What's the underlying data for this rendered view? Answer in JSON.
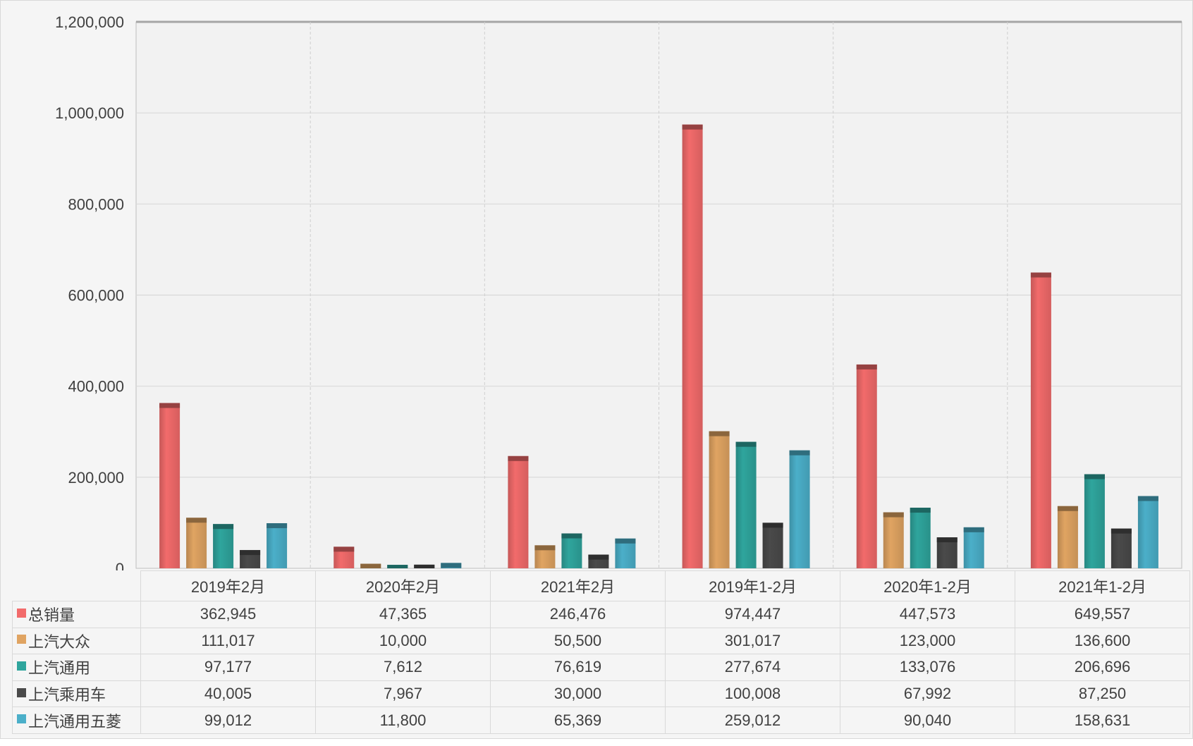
{
  "chart_data": {
    "type": "bar",
    "title": "",
    "xlabel": "",
    "ylabel": "",
    "ylim": [
      0,
      1200000
    ],
    "yticks": [
      0,
      200000,
      400000,
      600000,
      800000,
      1000000,
      1200000
    ],
    "ytick_labels": [
      "0",
      "200,000",
      "400,000",
      "600,000",
      "800,000",
      "1,000,000",
      "1,200,000"
    ],
    "grid": true,
    "legend_placement": "data-table-left",
    "categories": [
      "2019年2月",
      "2020年2月",
      "2021年2月",
      "2019年1-2月",
      "2020年1-2月",
      "2021年1-2月"
    ],
    "series": [
      {
        "name": "总销量",
        "color": "#f26b6b",
        "values": [
          362945,
          47365,
          246476,
          974447,
          447573,
          649557
        ],
        "labels": [
          "362,945",
          "47,365",
          "246,476",
          "974,447",
          "447,573",
          "649,557"
        ]
      },
      {
        "name": "上汽大众",
        "color": "#e0a462",
        "values": [
          111017,
          10000,
          50500,
          301017,
          123000,
          136600
        ],
        "labels": [
          "111,017",
          "10,000",
          "50,500",
          "301,017",
          "123,000",
          "136,600"
        ]
      },
      {
        "name": "上汽通用",
        "color": "#2fa59d",
        "values": [
          97177,
          7612,
          76619,
          277674,
          133076,
          206696
        ],
        "labels": [
          "97,177",
          "7,612",
          "76,619",
          "277,674",
          "133,076",
          "206,696"
        ]
      },
      {
        "name": "上汽乘用车",
        "color": "#4a4a4a",
        "values": [
          40005,
          7967,
          30000,
          100008,
          67992,
          87250
        ],
        "labels": [
          "40,005",
          "7,967",
          "30,000",
          "100,008",
          "67,992",
          "87,250"
        ]
      },
      {
        "name": "上汽通用五菱",
        "color": "#4bafc9",
        "values": [
          99012,
          11800,
          65369,
          259012,
          90040,
          158631
        ],
        "labels": [
          "99,012",
          "11,800",
          "65,369",
          "259,012",
          "90,040",
          "158,631"
        ]
      }
    ]
  }
}
